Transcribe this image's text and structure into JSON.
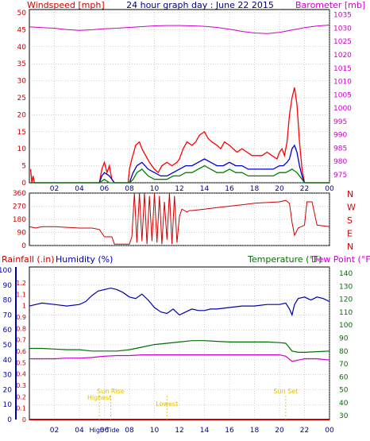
{
  "title": "24 hour graph day : June 22 2015",
  "colors": {
    "wind_gust": "#ff0000",
    "wind_avg": "#0000cc",
    "wind_low": "#008000",
    "barometer": "#cc00cc",
    "direction": "#cc0000",
    "humidity": "#0000aa",
    "temperature": "#007000",
    "dewpoint": "#cc00cc",
    "rain": "#cc0000",
    "sun_events": "#e0c000",
    "grid": "#a0a0a0"
  },
  "chart_data": [
    {
      "type": "line",
      "panel": "wind_barometer",
      "left_axis_label": "Windspeed [mph]",
      "right_axis_label": "Barometer [mb]",
      "x_ticks": [
        "02",
        "04",
        "06",
        "08",
        "10",
        "12",
        "14",
        "16",
        "18",
        "20",
        "22",
        "00"
      ],
      "left_ticks": [
        "0",
        "5",
        "10",
        "15",
        "20",
        "25",
        "30",
        "35",
        "40",
        "45",
        "50"
      ],
      "right_ticks": [
        "975",
        "980",
        "985",
        "990",
        "995",
        "1000",
        "1005",
        "1010",
        "1015",
        "1020",
        "1025",
        "1030",
        "1035"
      ],
      "ylim_left": [
        0,
        50
      ],
      "ylim_right": [
        972,
        1037
      ],
      "x_range_hours": [
        0,
        24
      ],
      "grid": true,
      "series": [
        {
          "key": "wind_gust",
          "x": [
            0.1,
            0.2,
            0.3,
            0.4,
            0.5,
            1,
            2,
            3,
            4,
            5,
            5.6,
            5.8,
            6,
            6.2,
            6.4,
            6.6,
            6.8,
            7,
            7.5,
            7.9,
            8,
            8.2,
            8.5,
            8.8,
            9,
            9.3,
            9.6,
            10,
            10.3,
            10.6,
            11,
            11.4,
            11.8,
            12,
            12.3,
            12.6,
            13,
            13.3,
            13.6,
            14,
            14.3,
            14.6,
            15,
            15.3,
            15.6,
            16,
            16.3,
            16.6,
            17,
            17.4,
            17.8,
            18.2,
            18.6,
            19,
            19.4,
            19.8,
            20,
            20.2,
            20.4,
            20.6,
            20.8,
            21,
            21.2,
            21.4,
            21.6,
            21.8,
            22,
            22.2,
            22.5,
            23,
            24
          ],
          "y": [
            4,
            0,
            2,
            0,
            0,
            0,
            0,
            0,
            0,
            0,
            0,
            4,
            6,
            3,
            5,
            1,
            0,
            0,
            0,
            0,
            4,
            7,
            11,
            12,
            10,
            8,
            6,
            4,
            3,
            5,
            6,
            5,
            6,
            7,
            10,
            12,
            11,
            12,
            14,
            15,
            13,
            12,
            11,
            10,
            12,
            11,
            10,
            9,
            10,
            9,
            8,
            8,
            8,
            9,
            8,
            7,
            9,
            10,
            8,
            12,
            20,
            25,
            28,
            23,
            12,
            4,
            0,
            0,
            0,
            0,
            0
          ]
        },
        {
          "key": "wind_avg",
          "x": [
            0,
            5.6,
            5.8,
            6,
            6.4,
            6.8,
            7,
            8,
            8.3,
            8.6,
            9,
            9.5,
            10,
            10.5,
            11,
            11.5,
            12,
            12.5,
            13,
            13.5,
            14,
            14.5,
            15,
            15.5,
            16,
            16.5,
            17,
            17.5,
            18,
            18.5,
            19,
            19.5,
            20,
            20.3,
            20.6,
            20.8,
            21,
            21.2,
            21.4,
            21.6,
            21.8,
            22,
            24
          ],
          "y": [
            0,
            0,
            2,
            3,
            2,
            0,
            0,
            0,
            3,
            5,
            6,
            4,
            3,
            2,
            2,
            3,
            4,
            5,
            5,
            6,
            7,
            6,
            5,
            5,
            6,
            5,
            5,
            4,
            4,
            4,
            4,
            4,
            5,
            5,
            6,
            7,
            10,
            11,
            9,
            5,
            2,
            0,
            0
          ]
        },
        {
          "key": "wind_low",
          "x": [
            0,
            5.6,
            6,
            6.4,
            7,
            8,
            8.3,
            8.6,
            9,
            9.5,
            10,
            10.5,
            11,
            11.5,
            12,
            12.5,
            13,
            13.5,
            14,
            14.5,
            15,
            15.5,
            16,
            16.5,
            17,
            17.5,
            18,
            18.5,
            19,
            19.5,
            20,
            20.5,
            21,
            21.4,
            21.8,
            22,
            24
          ],
          "y": [
            0,
            0,
            1,
            0,
            0,
            0,
            1,
            3,
            4,
            2,
            1,
            1,
            1,
            2,
            2,
            3,
            3,
            4,
            5,
            4,
            3,
            3,
            4,
            3,
            3,
            2,
            2,
            2,
            2,
            2,
            3,
            3,
            4,
            3,
            1,
            0,
            0
          ]
        },
        {
          "key": "barometer",
          "axis": "right",
          "x": [
            0,
            1,
            2,
            3,
            4,
            5,
            6,
            7,
            8,
            9,
            10,
            11,
            12,
            13,
            14,
            15,
            16,
            17,
            18,
            19,
            20,
            21,
            22,
            23,
            24
          ],
          "y": [
            1030.5,
            1030.2,
            1030,
            1029.5,
            1029.2,
            1029.4,
            1029.8,
            1030,
            1030.3,
            1030.6,
            1030.9,
            1031,
            1031,
            1030.9,
            1030.7,
            1030.3,
            1029.6,
            1028.8,
            1028.2,
            1028,
            1028.4,
            1029.3,
            1030.2,
            1030.8,
            1031.2
          ]
        }
      ]
    },
    {
      "type": "line",
      "panel": "wind_direction",
      "left_ticks": [
        "360",
        "270",
        "180",
        "90",
        "0"
      ],
      "right_ticks": [
        "N",
        "W",
        "S",
        "E",
        "N"
      ],
      "ylim": [
        0,
        360
      ],
      "series": [
        {
          "key": "direction",
          "x": [
            0,
            0.5,
            1,
            2,
            3,
            4,
            5,
            5.6,
            5.8,
            6,
            6.3,
            6.6,
            6.8,
            7,
            7.5,
            8,
            8.2,
            8.4,
            8.6,
            8.8,
            9,
            9.2,
            9.4,
            9.6,
            9.8,
            10,
            10.2,
            10.4,
            10.6,
            10.8,
            11,
            11.2,
            11.4,
            11.6,
            11.8,
            12,
            12.2,
            12.4,
            12.6,
            12.8,
            13,
            14,
            15,
            16,
            17,
            18,
            19,
            20,
            20.5,
            20.8,
            21,
            21.2,
            21.5,
            22,
            22.2,
            22.6,
            23,
            24
          ],
          "y": [
            130,
            120,
            130,
            130,
            125,
            120,
            120,
            110,
            85,
            60,
            60,
            60,
            10,
            10,
            10,
            10,
            60,
            360,
            20,
            360,
            30,
            360,
            10,
            340,
            30,
            360,
            20,
            340,
            10,
            300,
            40,
            360,
            10,
            340,
            20,
            200,
            250,
            240,
            230,
            240,
            240,
            250,
            260,
            270,
            280,
            290,
            295,
            300,
            310,
            290,
            160,
            70,
            120,
            140,
            300,
            300,
            140,
            130
          ]
        }
      ]
    },
    {
      "type": "line",
      "panel": "rain_humidity_temperature",
      "left_axis_labels": [
        "Rainfall (.in)",
        "Humidity (%)"
      ],
      "right_axis_labels": [
        "Temperature (°F)",
        "Dew Point (°F)"
      ],
      "rain_ticks": [
        "0",
        "0.1",
        "0.2",
        "0.3",
        "0.4",
        "0.5",
        "0.6",
        "0.7",
        "0.8",
        "0.9",
        "1",
        "1.1",
        "1.2"
      ],
      "humidity_ticks": [
        "0",
        "10",
        "20",
        "30",
        "40",
        "50",
        "60",
        "70",
        "80",
        "90",
        "100"
      ],
      "temp_ticks": [
        "30",
        "40",
        "50",
        "60",
        "70",
        "80",
        "90",
        "100",
        "110",
        "120",
        "130",
        "140"
      ],
      "ylim_humidity": [
        0,
        100
      ],
      "ylim_temp": [
        27,
        145
      ],
      "series": [
        {
          "key": "humidity",
          "axis": "humidity",
          "x": [
            0,
            1,
            2,
            3,
            4,
            4.5,
            5,
            5.5,
            6,
            6.5,
            7,
            7.5,
            8,
            8.5,
            9,
            9.5,
            10,
            10.5,
            11,
            11.5,
            12,
            12.5,
            13,
            13.5,
            14,
            14.5,
            15,
            16,
            17,
            18,
            19,
            20,
            20.5,
            20.8,
            21,
            21.2,
            21.5,
            22,
            22.5,
            23,
            23.5,
            24
          ],
          "y": [
            76,
            78,
            77,
            76,
            77,
            79,
            83,
            86,
            87,
            88,
            87,
            85,
            82,
            81,
            84,
            80,
            75,
            72,
            71,
            74,
            70,
            72,
            74,
            73,
            73,
            74,
            74,
            75,
            76,
            76,
            77,
            77,
            78,
            74,
            70,
            77,
            81,
            82,
            80,
            82,
            81,
            79
          ]
        },
        {
          "key": "temperature",
          "axis": "temp",
          "x": [
            0,
            1,
            2,
            3,
            4,
            5,
            6,
            7,
            8,
            9,
            10,
            11,
            12,
            13,
            14,
            15,
            16,
            17,
            18,
            19,
            20,
            20.5,
            21,
            21.5,
            22,
            23,
            24
          ],
          "y": [
            82,
            82,
            81.5,
            81,
            81,
            80,
            80,
            80,
            81,
            83,
            85,
            86,
            87,
            88,
            88,
            87.5,
            87,
            87,
            87,
            87,
            86.5,
            86,
            80,
            79,
            79,
            79.5,
            80
          ]
        },
        {
          "key": "dewpoint",
          "axis": "temp",
          "x": [
            0,
            1,
            2,
            3,
            4,
            5,
            6,
            7,
            8,
            9,
            10,
            11,
            12,
            13,
            14,
            15,
            16,
            17,
            18,
            19,
            20,
            20.5,
            21,
            21.5,
            22,
            23,
            24
          ],
          "y": [
            74,
            74,
            74,
            74.5,
            74.5,
            75,
            76,
            76.5,
            76.5,
            77,
            77,
            77,
            77,
            77,
            77,
            77,
            77,
            77,
            77,
            77,
            77,
            76,
            72,
            73,
            74,
            74,
            73
          ]
        }
      ],
      "rain_total": 0,
      "sun_events": [
        {
          "label": "Sun Rise",
          "hour": 6.5
        },
        {
          "label": "Highest",
          "hour": 5.6
        },
        {
          "label": "Lowest",
          "hour": 11
        },
        {
          "label": "Sun Set",
          "hour": 20.5
        }
      ],
      "x_ticks": [
        "02",
        "04",
        "06",
        "08",
        "10",
        "12",
        "14",
        "16",
        "18",
        "20",
        "22",
        "00"
      ],
      "noon_label": "High Tide"
    }
  ]
}
